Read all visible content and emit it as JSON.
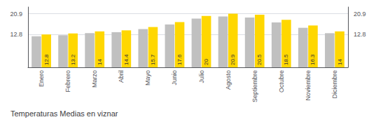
{
  "chart_data": {
    "type": "bar",
    "title": "Temperaturas Medias en viznar",
    "categories": [
      "Enero",
      "Febrero",
      "Marzo",
      "Abril",
      "Mayo",
      "Junio",
      "Julio",
      "Agosto",
      "Septiembre",
      "Octubre",
      "Noviembre",
      "Diciembre"
    ],
    "series": [
      {
        "color": "#C0C0C0",
        "values": [
          12.1,
          12.5,
          13.3,
          13.7,
          14.9,
          16.7,
          19.0,
          19.8,
          19.4,
          17.5,
          15.4,
          13.3
        ]
      },
      {
        "color": "#FFD700",
        "values": [
          12.8,
          13.2,
          14.0,
          14.4,
          15.7,
          17.6,
          20.0,
          20.9,
          20.5,
          18.5,
          16.3,
          14.0
        ],
        "data_labels": true
      }
    ],
    "ylim": [
      0,
      23.5
    ],
    "yticks": [
      12.8,
      20.9
    ],
    "y2lim": [
      0,
      23.5
    ],
    "y2ticks": [
      12.8,
      20.9
    ],
    "grid": true
  }
}
